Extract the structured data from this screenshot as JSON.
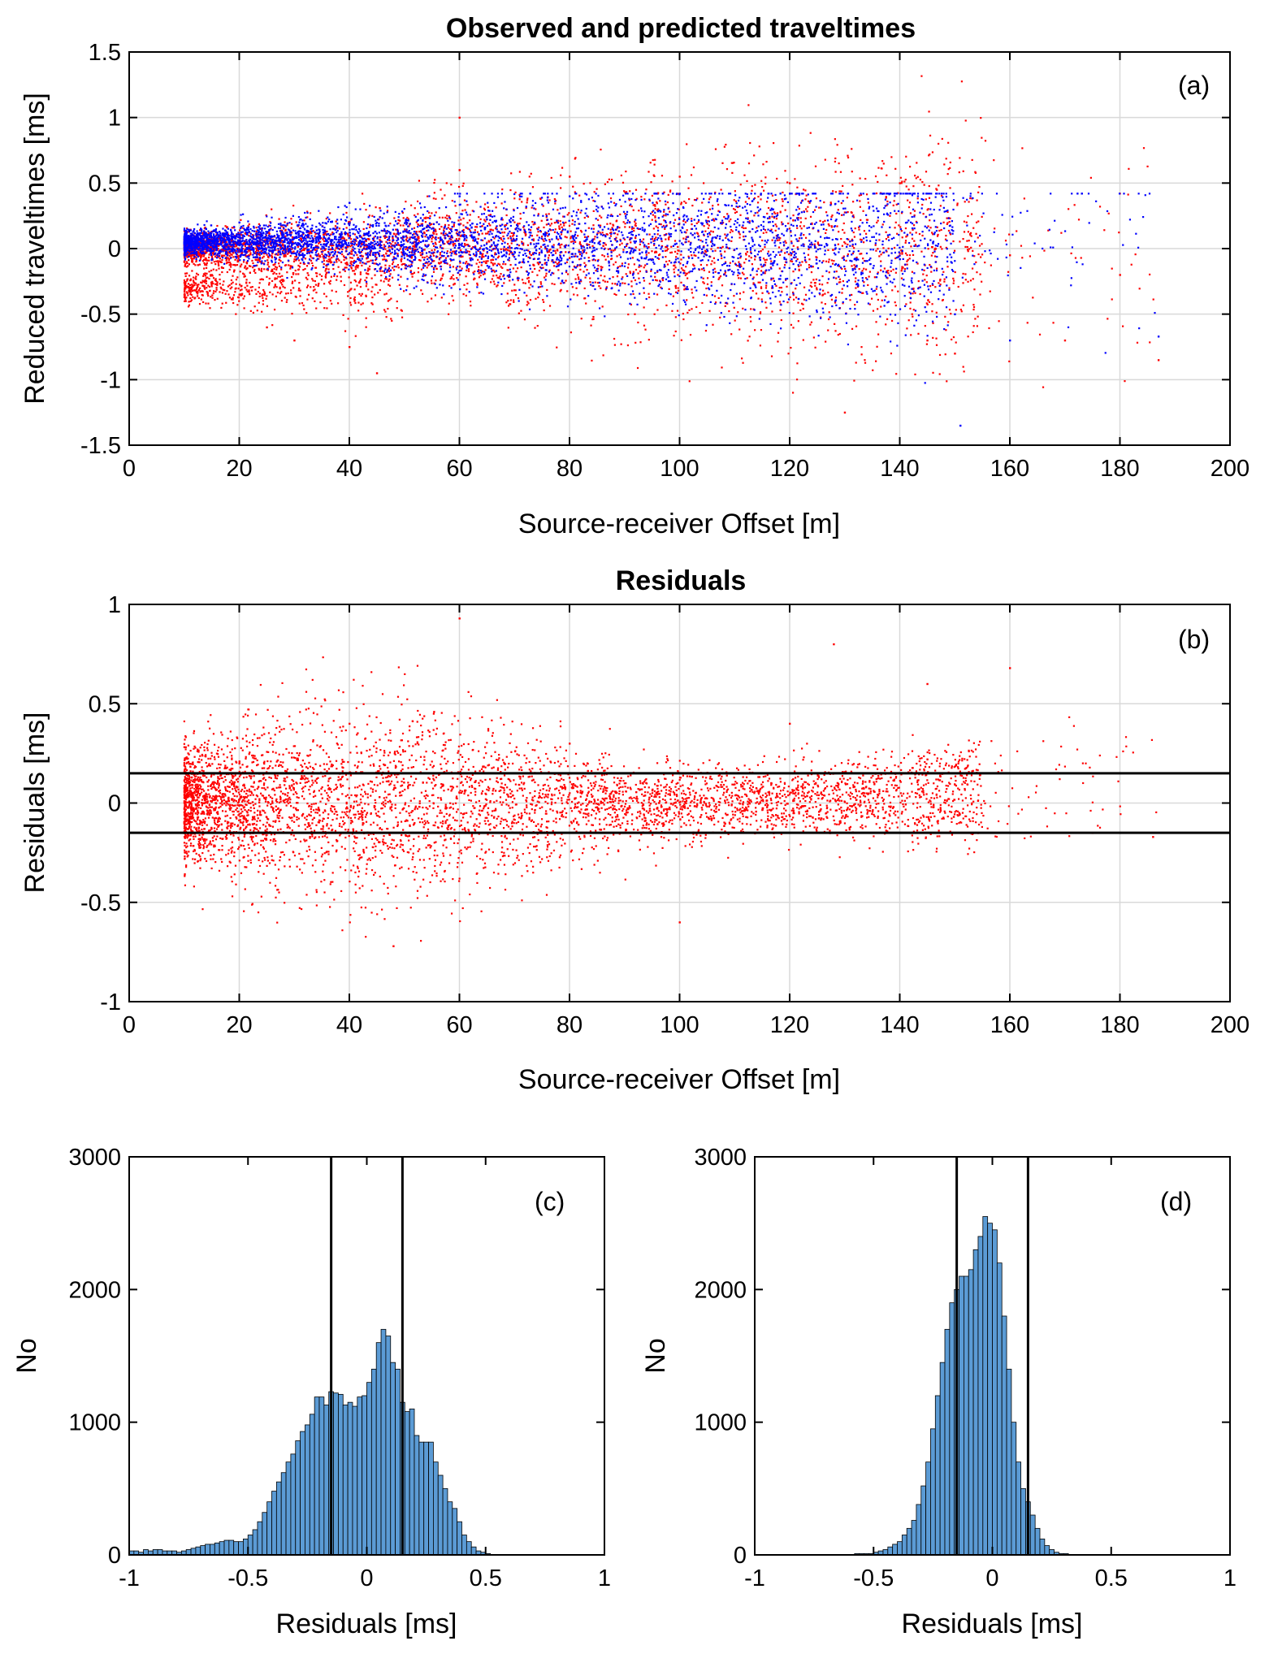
{
  "chart_data": [
    {
      "id": "a",
      "type": "scatter",
      "title": "Observed and predicted traveltimes",
      "panel_label": "(a)",
      "xlabel": "Source-receiver Offset [m]",
      "ylabel": "Reduced traveltimes [ms]",
      "xlim": [
        0,
        200
      ],
      "ylim": [
        -1.5,
        1.5
      ],
      "xticks": [
        "0",
        "20",
        "40",
        "60",
        "80",
        "100",
        "120",
        "140",
        "160",
        "180",
        "200"
      ],
      "yticks": [
        "-1.5",
        "-1",
        "-0.5",
        "0",
        "0.5",
        "1",
        "1.5"
      ],
      "grid": true,
      "series": [
        {
          "name": "",
          "color": "#ff0000",
          "description_points": [
            [
              10,
              -0.1
            ],
            [
              15,
              -0.2
            ],
            [
              20,
              -0.35
            ],
            [
              25,
              -0.6
            ],
            [
              30,
              -0.7
            ],
            [
              40,
              -0.75
            ],
            [
              45,
              -0.95
            ],
            [
              60,
              1.0
            ],
            [
              60,
              0.6
            ],
            [
              80,
              0.55
            ],
            [
              100,
              0.55
            ],
            [
              120,
              0.5
            ],
            [
              130,
              -1.25
            ],
            [
              140,
              0.5
            ],
            [
              145,
              -0.7
            ],
            [
              150,
              -0.8
            ],
            [
              160,
              -0.05
            ],
            [
              170,
              -0.7
            ],
            [
              180,
              -0.2
            ],
            [
              187,
              -0.85
            ]
          ]
        },
        {
          "name": "",
          "color": "#0000ff",
          "description_points": [
            [
              10,
              0.05
            ],
            [
              20,
              0.2
            ],
            [
              40,
              0.35
            ],
            [
              60,
              0.4
            ],
            [
              80,
              0.4
            ],
            [
              100,
              0.42
            ],
            [
              120,
              0.42
            ],
            [
              140,
              -0.08
            ],
            [
              150,
              -0.5
            ],
            [
              151,
              -1.35
            ],
            [
              160,
              -0.7
            ],
            [
              187,
              -0.67
            ]
          ]
        }
      ]
    },
    {
      "id": "b",
      "type": "scatter",
      "title": "Residuals",
      "panel_label": "(b)",
      "xlabel": "Source-receiver Offset [m]",
      "ylabel": "Residuals [ms]",
      "xlim": [
        0,
        200
      ],
      "ylim": [
        -1,
        1
      ],
      "xticks": [
        "0",
        "20",
        "40",
        "60",
        "80",
        "100",
        "120",
        "140",
        "160",
        "180",
        "200"
      ],
      "yticks": [
        "-1",
        "-0.5",
        "0",
        "0.5",
        "1"
      ],
      "grid": true,
      "hlines": [
        0.15,
        -0.15
      ],
      "series": [
        {
          "name": "",
          "color": "#ff0000",
          "description_points": [
            [
              10,
              -0.1
            ],
            [
              20,
              0.2
            ],
            [
              40,
              0.4
            ],
            [
              48,
              -0.72
            ],
            [
              60,
              0.93
            ],
            [
              80,
              0.3
            ],
            [
              100,
              -0.6
            ],
            [
              120,
              0.4
            ],
            [
              128,
              0.8
            ],
            [
              145,
              0.6
            ],
            [
              160,
              0.68
            ],
            [
              175,
              -0.15
            ],
            [
              186,
              -0.17
            ]
          ]
        }
      ]
    },
    {
      "id": "c",
      "type": "bar",
      "title": "",
      "panel_label": "(c)",
      "xlabel": "Residuals [ms]",
      "ylabel": "No",
      "xlim": [
        -1,
        1
      ],
      "ylim": [
        0,
        3000
      ],
      "xticks": [
        "-1",
        "-0.5",
        "0",
        "0.5",
        "1"
      ],
      "yticks": [
        "0",
        "1000",
        "2000",
        "3000"
      ],
      "bar_color": "#5b9bd5",
      "vlines": [
        -0.15,
        0.15
      ],
      "bin_width": 0.02,
      "bin_start": -1.0,
      "values": [
        30,
        30,
        20,
        40,
        30,
        40,
        40,
        30,
        30,
        30,
        20,
        30,
        40,
        50,
        60,
        70,
        80,
        80,
        90,
        100,
        110,
        110,
        100,
        100,
        120,
        150,
        190,
        250,
        320,
        400,
        480,
        550,
        620,
        700,
        760,
        860,
        930,
        980,
        1060,
        1190,
        1190,
        1130,
        1230,
        1220,
        1210,
        1130,
        1150,
        1120,
        1190,
        1200,
        1300,
        1400,
        1600,
        1700,
        1650,
        1450,
        1400,
        1150,
        1080,
        1100,
        900,
        850,
        850,
        850,
        700,
        600,
        500,
        400,
        350,
        250,
        150,
        100,
        60,
        30,
        20,
        10,
        0,
        0,
        0,
        0,
        0,
        0,
        0,
        0,
        0,
        0,
        0,
        0,
        0,
        0,
        0,
        0,
        0,
        0,
        0,
        0,
        0,
        0,
        0,
        0
      ]
    },
    {
      "id": "d",
      "type": "bar",
      "title": "",
      "panel_label": "(d)",
      "xlabel": "Residuals [ms]",
      "ylabel": "No",
      "xlim": [
        -1,
        1
      ],
      "ylim": [
        0,
        3000
      ],
      "xticks": [
        "-1",
        "-0.5",
        "0",
        "0.5",
        "1"
      ],
      "yticks": [
        "0",
        "1000",
        "2000",
        "3000"
      ],
      "bar_color": "#5b9bd5",
      "vlines": [
        -0.15,
        0.15
      ],
      "bin_width": 0.02,
      "bin_start": -1.0,
      "values": [
        0,
        0,
        0,
        0,
        0,
        0,
        0,
        0,
        0,
        0,
        0,
        0,
        0,
        0,
        0,
        0,
        0,
        0,
        0,
        0,
        0,
        10,
        10,
        10,
        10,
        20,
        30,
        40,
        60,
        80,
        100,
        150,
        200,
        260,
        380,
        520,
        700,
        950,
        1200,
        1450,
        1700,
        1900,
        2000,
        2100,
        2100,
        2150,
        2300,
        2400,
        2550,
        2500,
        2450,
        2200,
        1800,
        1400,
        1000,
        700,
        500,
        400,
        300,
        200,
        120,
        70,
        40,
        20,
        10,
        10,
        0,
        0,
        0,
        0,
        0,
        0,
        0,
        0,
        0,
        0,
        0,
        0,
        0,
        0,
        0,
        0,
        0,
        0,
        0,
        0,
        0,
        0,
        0,
        0,
        0,
        0,
        0,
        0,
        0,
        0,
        0,
        0,
        0,
        0
      ]
    }
  ]
}
